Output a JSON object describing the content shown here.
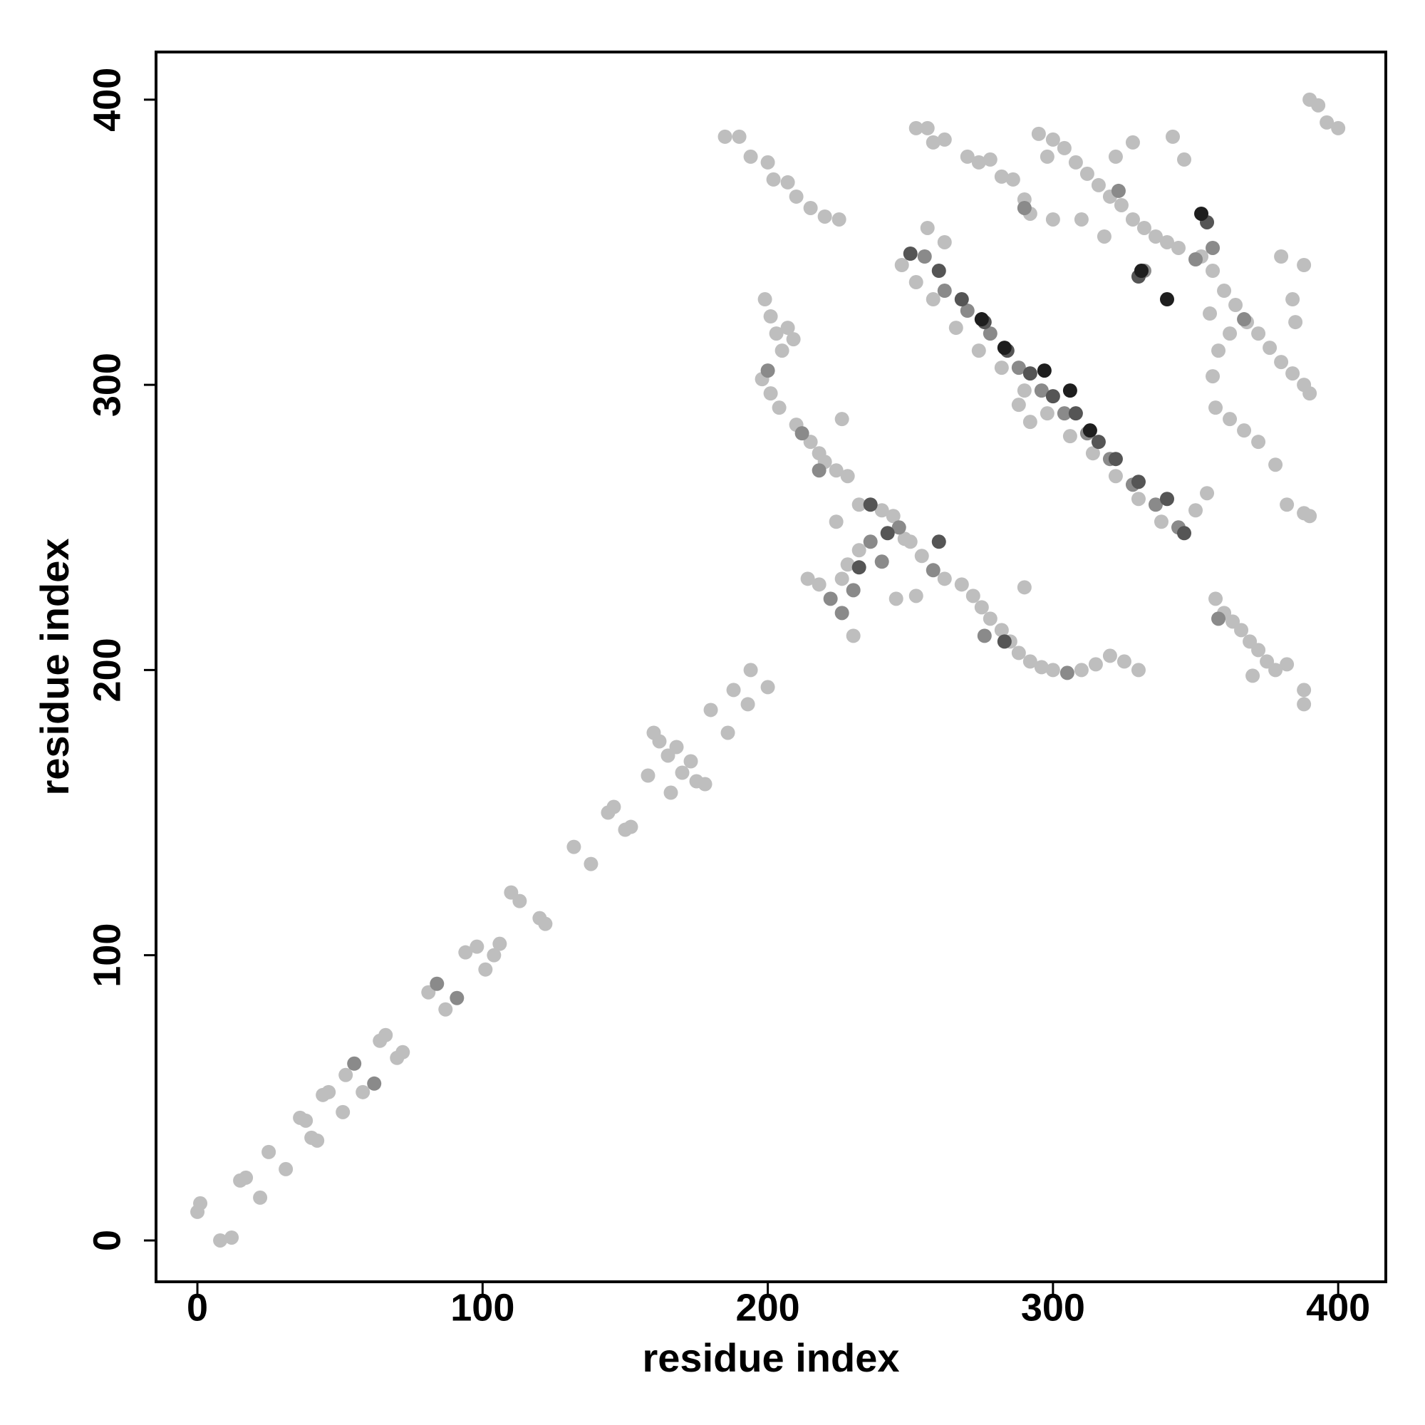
{
  "chart_data": {
    "type": "scatter",
    "xlabel": "residue index",
    "ylabel": "residue index",
    "xlim": [
      -14.5,
      416.7
    ],
    "ylim": [
      -14.5,
      416.7
    ],
    "xticks": [
      0,
      100,
      200,
      300,
      400
    ],
    "yticks": [
      0,
      100,
      200,
      300,
      400
    ],
    "grid": false,
    "series": [
      {
        "color": "#bebebe",
        "x": [
          0,
          1,
          8,
          12,
          15,
          17,
          22,
          25,
          31,
          36,
          38,
          40,
          42,
          44,
          46,
          51,
          52,
          58,
          64,
          66,
          70,
          72,
          81,
          87,
          94,
          98,
          101,
          104,
          106,
          110,
          113,
          120,
          122,
          132,
          138,
          144,
          146,
          150,
          152,
          158,
          160,
          162,
          165,
          166,
          168,
          170,
          173,
          175,
          178,
          180,
          186,
          188,
          193,
          194,
          200,
          185,
          190,
          194,
          200,
          202,
          207,
          210,
          215,
          220,
          225,
          199,
          201,
          203,
          205,
          207,
          209,
          198,
          201,
          204,
          210,
          215,
          218,
          220,
          224,
          228,
          226,
          232,
          240,
          244,
          248,
          232,
          228,
          226,
          230,
          250,
          254,
          262,
          214,
          218,
          224,
          252,
          245,
          268,
          272,
          275,
          278,
          282,
          285,
          288,
          292,
          296,
          300,
          310,
          315,
          320,
          325,
          330,
          290,
          247,
          252,
          258,
          262,
          256,
          266,
          274,
          282,
          290,
          298,
          306,
          314,
          322,
          330,
          338,
          350,
          354,
          292,
          288,
          295,
          300,
          304,
          298,
          308,
          312,
          316,
          320,
          324,
          328,
          332,
          336,
          340,
          344,
          300,
          310,
          318,
          322,
          328,
          342,
          346,
          352,
          356,
          360,
          364,
          368,
          372,
          376,
          380,
          384,
          388,
          390,
          358,
          362,
          356,
          380,
          384,
          388,
          385,
          355,
          252,
          256,
          258,
          262,
          270,
          274,
          278,
          282,
          286,
          290,
          292,
          357,
          360,
          363,
          366,
          369,
          372,
          375,
          378,
          382,
          388,
          388,
          370,
          357,
          362,
          367,
          372,
          378,
          382,
          388,
          390,
          390,
          393,
          396,
          400
        ],
        "values": [
          10,
          13,
          0,
          1,
          21,
          22,
          15,
          31,
          25,
          43,
          42,
          36,
          35,
          51,
          52,
          45,
          58,
          52,
          70,
          72,
          64,
          66,
          87,
          81,
          101,
          103,
          95,
          100,
          104,
          122,
          119,
          113,
          111,
          138,
          132,
          150,
          152,
          144,
          145,
          163,
          178,
          175,
          170,
          157,
          173,
          164,
          168,
          161,
          160,
          186,
          178,
          193,
          188,
          200,
          194,
          387,
          387,
          380,
          378,
          372,
          371,
          366,
          362,
          359,
          358,
          330,
          324,
          318,
          312,
          320,
          316,
          302,
          297,
          292,
          286,
          280,
          276,
          273,
          270,
          268,
          288,
          258,
          256,
          254,
          246,
          242,
          237,
          232,
          212,
          245,
          240,
          232,
          232,
          230,
          252,
          226,
          225,
          230,
          226,
          222,
          218,
          214,
          210,
          206,
          203,
          201,
          200,
          200,
          202,
          205,
          203,
          200,
          229,
          342,
          336,
          330,
          350,
          355,
          320,
          312,
          306,
          298,
          290,
          282,
          276,
          268,
          260,
          252,
          256,
          262,
          287,
          293,
          388,
          386,
          383,
          380,
          378,
          374,
          370,
          366,
          363,
          358,
          355,
          352,
          350,
          348,
          358,
          358,
          352,
          380,
          385,
          387,
          379,
          345,
          340,
          333,
          328,
          322,
          318,
          313,
          308,
          304,
          300,
          297,
          312,
          318,
          303,
          345,
          330,
          342,
          322,
          325,
          390,
          390,
          385,
          386,
          380,
          378,
          379,
          373,
          372,
          365,
          360,
          225,
          220,
          217,
          214,
          210,
          207,
          203,
          200,
          202,
          193,
          188,
          198,
          292,
          288,
          284,
          280,
          272,
          258,
          255,
          254,
          400,
          398,
          392,
          390
        ]
      },
      {
        "color": "#8a8a8a",
        "x": [
          55,
          62,
          84,
          91,
          212,
          236,
          258,
          222,
          246,
          305,
          276,
          200,
          218,
          255,
          262,
          270,
          278,
          288,
          296,
          304,
          312,
          320,
          328,
          336,
          344,
          350,
          356,
          367,
          323,
          332,
          358,
          226,
          240,
          230,
          290
        ],
        "values": [
          62,
          55,
          90,
          85,
          283,
          245,
          235,
          225,
          250,
          199,
          212,
          305,
          270,
          345,
          333,
          326,
          318,
          306,
          298,
          290,
          283,
          274,
          265,
          258,
          250,
          344,
          348,
          323,
          368,
          340,
          218,
          220,
          238,
          228,
          362
        ]
      },
      {
        "color": "#555555",
        "x": [
          236,
          283,
          250,
          260,
          268,
          276,
          284,
          292,
          300,
          308,
          316,
          322,
          330,
          340,
          346,
          232,
          242,
          260,
          354,
          330
        ],
        "values": [
          258,
          210,
          346,
          340,
          330,
          322,
          312,
          304,
          296,
          290,
          280,
          274,
          266,
          260,
          248,
          236,
          248,
          245,
          357,
          338
        ]
      },
      {
        "color": "#1e1e1e",
        "x": [
          283,
          297,
          306,
          313,
          331,
          340,
          275,
          352
        ],
        "values": [
          313,
          305,
          298,
          284,
          340,
          330,
          323,
          360
        ]
      }
    ]
  }
}
